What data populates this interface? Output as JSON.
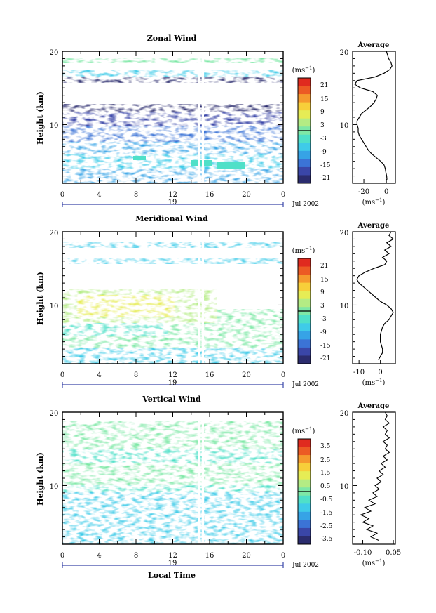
{
  "chart_data": [
    {
      "type": "heatmap",
      "title": "Zonal Wind",
      "ylabel": "Height (km)",
      "xlabel": "",
      "date_label": "Jul 2002",
      "day_label": "19",
      "x_ticks": [
        "0",
        "4",
        "8",
        "12",
        "16",
        "20",
        "0"
      ],
      "xlim": [
        0,
        24
      ],
      "y_ticks": [
        "20",
        "10"
      ],
      "ylim": [
        2,
        20
      ],
      "colorbar": {
        "unit_base": "(ms",
        "unit_exp": "−1",
        "unit_close": ")",
        "tick_labels": [
          "21",
          "15",
          "9",
          "3",
          "-3",
          "-9",
          "-15",
          "-21"
        ],
        "zero_line": true
      },
      "profile": {
        "title": "Average",
        "x_ticks": [
          "-20",
          "0"
        ],
        "xlim": [
          -30,
          8
        ],
        "y_ticks": [
          "20",
          "10"
        ],
        "ylim": [
          2,
          20
        ],
        "unit_base": "(ms",
        "unit_exp": "−1",
        "unit_close": ")",
        "x": [
          0.5,
          0.3,
          -0.5,
          -1,
          -2,
          -5,
          -9,
          -13,
          -16,
          -18,
          -20,
          -22,
          -24,
          -25,
          -25,
          -26,
          -26,
          -24,
          -22,
          -18,
          -14,
          -11,
          -9,
          -8,
          -12,
          -23,
          -28,
          -26,
          -10,
          -2,
          3,
          5,
          4,
          2,
          1,
          0
        ],
        "y": [
          2.5,
          3,
          3.5,
          4,
          4.5,
          5,
          5.5,
          6,
          6.5,
          7,
          7.5,
          8,
          8.5,
          9,
          9.5,
          10,
          10.5,
          11,
          11.5,
          12,
          12.5,
          13,
          13.5,
          14,
          14.5,
          15,
          15.5,
          16,
          16.5,
          17,
          17.5,
          18,
          18.5,
          19,
          19.5,
          20
        ]
      }
    },
    {
      "type": "heatmap",
      "title": "Meridional Wind",
      "ylabel": "Height (km)",
      "xlabel": "",
      "date_label": "Jul 2002",
      "day_label": "19",
      "x_ticks": [
        "0",
        "4",
        "8",
        "12",
        "16",
        "20",
        "0"
      ],
      "xlim": [
        0,
        24
      ],
      "y_ticks": [
        "20",
        "10"
      ],
      "ylim": [
        2,
        20
      ],
      "colorbar": {
        "unit_base": "(ms",
        "unit_exp": "−1",
        "unit_close": ")",
        "tick_labels": [
          "21",
          "15",
          "9",
          "3",
          "-3",
          "-9",
          "-15",
          "-21"
        ],
        "zero_line": true
      },
      "profile": {
        "title": "Average",
        "x_ticks": [
          "-10",
          "0"
        ],
        "xlim": [
          -13,
          7
        ],
        "y_ticks": [
          "20",
          "10"
        ],
        "ylim": [
          2,
          20
        ],
        "unit_base": "(ms",
        "unit_exp": "−1",
        "unit_close": ")",
        "x": [
          -1,
          0,
          1,
          1,
          0.5,
          0,
          0,
          0,
          0.5,
          1,
          2,
          4,
          5,
          6,
          5,
          3,
          0,
          -2,
          -4,
          -6,
          -8,
          -10,
          -11,
          -10,
          -7,
          -3,
          2,
          3,
          1,
          4,
          2,
          5,
          3,
          6,
          4,
          5
        ],
        "y": [
          2.5,
          3,
          3.5,
          4,
          4.5,
          5,
          5.5,
          6,
          6.5,
          7,
          7.5,
          8,
          8.5,
          9,
          9.5,
          10,
          10.5,
          11,
          11.5,
          12,
          12.5,
          13,
          13.5,
          14,
          14.5,
          15,
          15.5,
          16,
          16.5,
          17,
          17.5,
          18,
          18.5,
          19,
          19.5,
          20
        ]
      }
    },
    {
      "type": "heatmap",
      "title": "Vertical Wind",
      "ylabel": "Height (km)",
      "xlabel": "Local Time",
      "date_label": "Jul 2002",
      "day_label": "19",
      "x_ticks": [
        "0",
        "4",
        "8",
        "12",
        "16",
        "20",
        "0"
      ],
      "xlim": [
        0,
        24
      ],
      "y_ticks": [
        "20",
        "10"
      ],
      "ylim": [
        2,
        20
      ],
      "colorbar": {
        "unit_base": "(ms",
        "unit_exp": "−1",
        "unit_close": ")",
        "tick_labels": [
          "3.5",
          "2.5",
          "1.5",
          "0.5",
          "-0.5",
          "-1.5",
          "-2.5",
          "-3.5"
        ],
        "zero_line": true
      },
      "profile": {
        "title": "Average",
        "x_ticks": [
          "-0.10",
          "0.05"
        ],
        "xlim": [
          -0.15,
          0.06
        ],
        "y_ticks": [
          "20",
          "10"
        ],
        "ylim": [
          2,
          20
        ],
        "unit_base": "(ms",
        "unit_exp": "−1",
        "unit_close": ")",
        "x": [
          -0.02,
          -0.06,
          -0.03,
          -0.08,
          -0.05,
          -0.1,
          -0.07,
          -0.11,
          -0.06,
          -0.09,
          -0.04,
          -0.07,
          -0.03,
          -0.05,
          -0.02,
          -0.04,
          -0.01,
          -0.03,
          0.0,
          -0.02,
          0.01,
          -0.01,
          0.02,
          0.0,
          0.03,
          0.01,
          0.02,
          0.0,
          0.03,
          0.01,
          0.02,
          0.0,
          0.03,
          0.01,
          0.02,
          0.01
        ],
        "y": [
          2.5,
          3,
          3.5,
          4,
          4.5,
          5,
          5.5,
          6,
          6.5,
          7,
          7.5,
          8,
          8.5,
          9,
          9.5,
          10,
          10.5,
          11,
          11.5,
          12,
          12.5,
          13,
          13.5,
          14,
          14.5,
          15,
          15.5,
          16,
          16.5,
          17,
          17.5,
          18,
          18.5,
          19,
          19.5,
          20
        ]
      }
    }
  ],
  "colors": {
    "scale": [
      "#2b2c6e",
      "#3a46a8",
      "#3b73d6",
      "#36a3e6",
      "#3fcbe8",
      "#4fe0c8",
      "#7ee8a6",
      "#b4ec84",
      "#e6ec55",
      "#f7cf3a",
      "#f59a2e",
      "#ec5a24",
      "#e02a1f"
    ]
  }
}
